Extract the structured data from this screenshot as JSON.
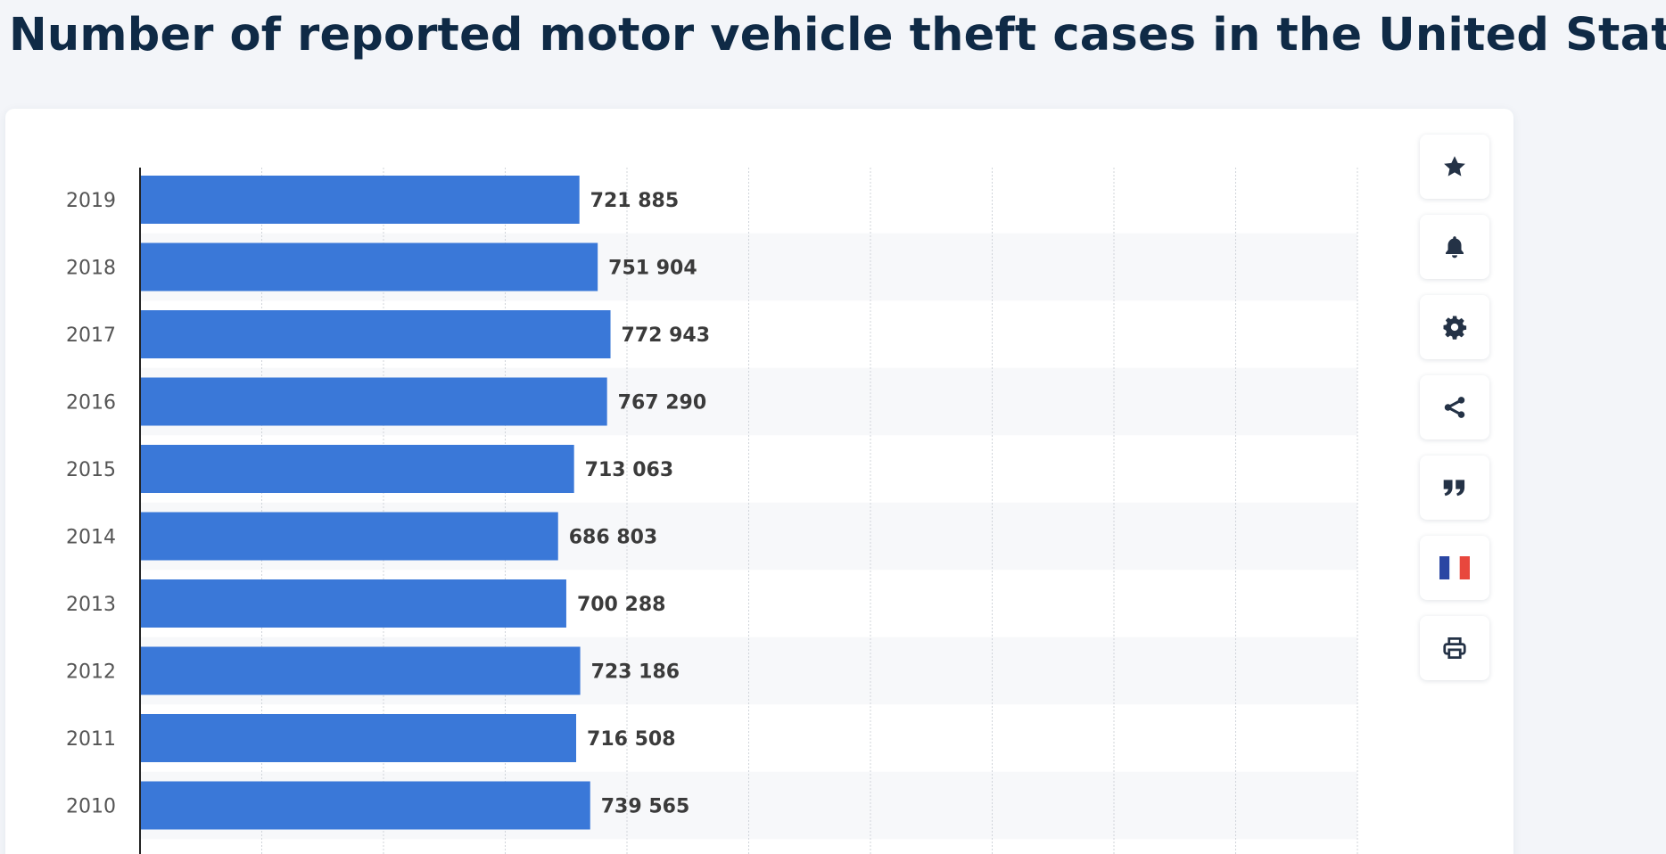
{
  "title": "Number of reported motor vehicle theft cases in the United States",
  "toolbar": {
    "buttons": [
      {
        "icon": "star-icon",
        "action": "favorite"
      },
      {
        "icon": "bell-icon",
        "action": "notifications"
      },
      {
        "icon": "gear-icon",
        "action": "settings"
      },
      {
        "icon": "share-icon",
        "action": "share"
      },
      {
        "icon": "quote-icon",
        "action": "cite"
      },
      {
        "icon": "french-flag-icon",
        "action": "language"
      },
      {
        "icon": "print-icon",
        "action": "print"
      }
    ]
  },
  "colors": {
    "bar": "#3a78d8",
    "axis": "#222222",
    "grid": "#d0d4da",
    "band": "#f7f8fa",
    "tick_label": "#555555",
    "value_label": "#3b3b3b",
    "title": "#0f2a46",
    "icon": "#243246",
    "flag_blue": "#2a46a3",
    "flag_red": "#e8473d"
  },
  "chart_data": {
    "type": "bar",
    "orientation": "horizontal",
    "categories": [
      "2019",
      "2018",
      "2017",
      "2016",
      "2015",
      "2014",
      "2013",
      "2012",
      "2011",
      "2010"
    ],
    "values": [
      721885,
      751904,
      772943,
      767290,
      713063,
      686803,
      700288,
      723186,
      716508,
      739565
    ],
    "value_labels": [
      "721 885",
      "751 904",
      "772 943",
      "767 290",
      "713 063",
      "686 803",
      "700 288",
      "723 186",
      "716 508",
      "739 565"
    ],
    "xlim": [
      0,
      2000000
    ],
    "grid": true,
    "title": "",
    "xlabel": "",
    "ylabel": ""
  }
}
